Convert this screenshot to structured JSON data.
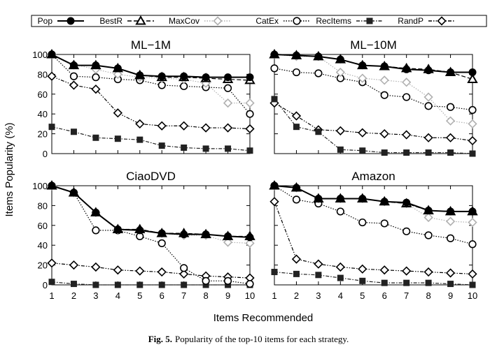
{
  "chart_data": {
    "type": "line",
    "caption": {
      "label": "Fig. 5.",
      "text": "Popularity of the top-10 items for each strategy."
    },
    "xlabel": "Items Recommended",
    "ylabel": "Items Popularity (%)",
    "x": [
      1,
      2,
      3,
      4,
      5,
      6,
      7,
      8,
      9,
      10
    ],
    "yticks": [
      0,
      20,
      40,
      60,
      80,
      100
    ],
    "ylim": [
      0,
      100
    ],
    "xlim": [
      1,
      10
    ],
    "legend": {
      "placement": "top",
      "entries": [
        "Pop",
        "BestR",
        "MaxCov",
        "CatEx",
        "RecItems",
        "RandP"
      ]
    },
    "styles": {
      "Pop": {
        "color": "#000000",
        "marker": "filled-circle",
        "dash": "none"
      },
      "BestR": {
        "color": "#000000",
        "marker": "open-triangle",
        "dash": "dashed"
      },
      "MaxCov": {
        "color": "#b0b0b0",
        "marker": "open-diamond",
        "dash": "dotted"
      },
      "CatEx": {
        "color": "#000000",
        "marker": "open-circle",
        "dash": "dotted"
      },
      "RecItems": {
        "color": "#222222",
        "marker": "filled-square",
        "dash": "dash-dot"
      },
      "RandP": {
        "color": "#000000",
        "marker": "open-diamond",
        "dash": "dash-dot-dot"
      }
    },
    "panels": [
      {
        "title": "ML−1M",
        "series": [
          {
            "name": "Pop",
            "values": [
              100,
              89,
              89,
              86,
              79,
              78,
              78,
              77,
              77,
              77
            ]
          },
          {
            "name": "BestR",
            "values": [
              100,
              89,
              89,
              86,
              79,
              77,
              77,
              76,
              75,
              74
            ]
          },
          {
            "name": "MaxCov",
            "values": [
              100,
              90,
              85,
              80,
              77,
              76,
              75,
              71,
              51,
              51
            ]
          },
          {
            "name": "CatEx",
            "values": [
              100,
              78,
              77,
              75,
              74,
              69,
              68,
              67,
              66,
              40
            ]
          },
          {
            "name": "RecItems",
            "values": [
              27,
              22,
              16,
              15,
              14,
              8,
              6,
              5,
              5,
              3
            ]
          },
          {
            "name": "RandP",
            "values": [
              78,
              69,
              65,
              41,
              30,
              28,
              28,
              26,
              26,
              25
            ]
          }
        ]
      },
      {
        "title": "ML−10M",
        "series": [
          {
            "name": "Pop",
            "values": [
              100,
              99,
              98,
              95,
              89,
              88,
              85,
              84,
              82,
              82
            ]
          },
          {
            "name": "BestR",
            "values": [
              100,
              99,
              98,
              95,
              89,
              88,
              86,
              85,
              82,
              75
            ]
          },
          {
            "name": "MaxCov",
            "values": [
              100,
              98,
              98,
              82,
              76,
              74,
              72,
              57,
              33,
              30
            ]
          },
          {
            "name": "CatEx",
            "values": [
              86,
              82,
              81,
              76,
              72,
              59,
              57,
              48,
              47,
              44
            ]
          },
          {
            "name": "RecItems",
            "values": [
              55,
              27,
              22,
              4,
              3,
              1,
              1,
              1,
              1,
              0
            ]
          },
          {
            "name": "RandP",
            "values": [
              51,
              38,
              24,
              23,
              21,
              20,
              19,
              16,
              16,
              13
            ]
          }
        ]
      },
      {
        "title": "CiaoDVD",
        "series": [
          {
            "name": "Pop",
            "values": [
              100,
              93,
              73,
              56,
              55,
              52,
              51,
              51,
              49,
              48
            ]
          },
          {
            "name": "BestR",
            "values": [
              100,
              93,
              73,
              56,
              56,
              52,
              52,
              51,
              49,
              49
            ]
          },
          {
            "name": "MaxCov",
            "values": [
              100,
              93,
              73,
              56,
              56,
              52,
              50,
              50,
              43,
              42
            ]
          },
          {
            "name": "CatEx",
            "values": [
              100,
              93,
              55,
              55,
              49,
              42,
              17,
              4,
              4,
              1
            ]
          },
          {
            "name": "RecItems",
            "values": [
              3,
              1,
              0,
              0,
              0,
              0,
              0,
              0,
              0,
              0
            ]
          },
          {
            "name": "RandP",
            "values": [
              22,
              20,
              18,
              15,
              14,
              13,
              11,
              9,
              8,
              7
            ]
          }
        ]
      },
      {
        "title": "Amazon",
        "series": [
          {
            "name": "Pop",
            "values": [
              100,
              98,
              87,
              87,
              87,
              84,
              83,
              75,
              74,
              74
            ]
          },
          {
            "name": "BestR",
            "values": [
              100,
              98,
              87,
              87,
              87,
              84,
              82,
              75,
              74,
              74
            ]
          },
          {
            "name": "MaxCov",
            "values": [
              100,
              98,
              87,
              87,
              87,
              84,
              82,
              68,
              64,
              63
            ]
          },
          {
            "name": "CatEx",
            "values": [
              100,
              86,
              82,
              74,
              63,
              62,
              54,
              50,
              47,
              41
            ]
          },
          {
            "name": "RecItems",
            "values": [
              13,
              11,
              10,
              7,
              4,
              2,
              2,
              2,
              1,
              0
            ]
          },
          {
            "name": "RandP",
            "values": [
              84,
              26,
              21,
              18,
              16,
              15,
              14,
              13,
              12,
              11
            ]
          }
        ]
      }
    ]
  }
}
